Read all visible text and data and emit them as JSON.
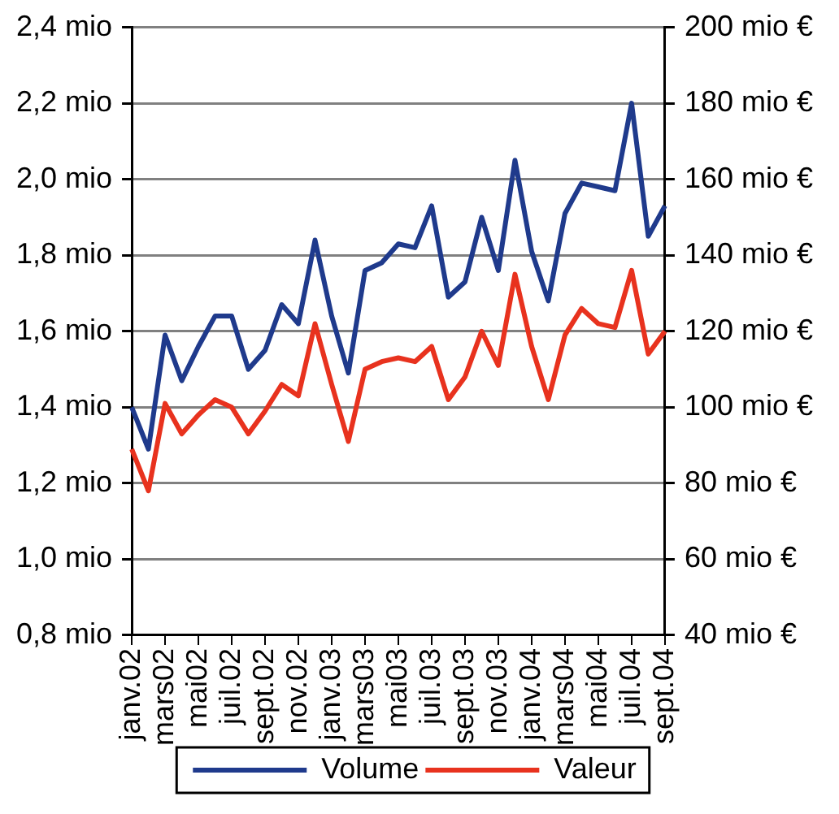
{
  "chart_data": {
    "type": "line",
    "categories": [
      "janv.02",
      null,
      "mars02",
      null,
      "mai02",
      null,
      "juil.02",
      null,
      "sept.02",
      null,
      "nov.02",
      null,
      "janv.03",
      null,
      "mars03",
      null,
      "mai03",
      null,
      "juil.03",
      null,
      "sept.03",
      null,
      "nov.03",
      null,
      "janv.04",
      null,
      "mars04",
      null,
      "mai04",
      null,
      "juil.04",
      null,
      "sept.04"
    ],
    "series": [
      {
        "name": "Volume",
        "color": "#1f3a8c",
        "values": [
          1.4,
          1.29,
          1.59,
          1.47,
          1.56,
          1.64,
          1.64,
          1.5,
          1.55,
          1.67,
          1.62,
          1.84,
          1.64,
          1.49,
          1.76,
          1.78,
          1.83,
          1.82,
          1.93,
          1.69,
          1.73,
          1.9,
          1.76,
          2.05,
          1.81,
          1.68,
          1.91,
          1.99,
          1.98,
          1.97,
          2.2,
          1.85,
          1.93
        ]
      },
      {
        "name": "Valeur",
        "color": "#e8321e",
        "axis": "y2",
        "values": [
          89,
          78,
          101,
          93,
          98,
          102,
          100,
          93,
          99,
          106,
          103,
          122,
          106,
          91,
          110,
          112,
          113,
          112,
          116,
          102,
          108,
          120,
          111,
          135,
          116,
          102,
          119,
          126,
          122,
          121,
          136,
          114,
          120
        ]
      }
    ],
    "ylim": [
      0.8,
      2.4
    ],
    "yticks": [
      {
        "value": 0.8,
        "label": "0,8 mio"
      },
      {
        "value": 1.0,
        "label": "1,0 mio"
      },
      {
        "value": 1.2,
        "label": "1,2 mio"
      },
      {
        "value": 1.4,
        "label": "1,4 mio"
      },
      {
        "value": 1.6,
        "label": "1,6 mio"
      },
      {
        "value": 1.8,
        "label": "1,8 mio"
      },
      {
        "value": 2.0,
        "label": "2,0 mio"
      },
      {
        "value": 2.2,
        "label": "2,2 mio"
      },
      {
        "value": 2.4,
        "label": "2,4 mio"
      }
    ],
    "y2lim": [
      40,
      200
    ],
    "y2ticks": [
      {
        "value": 40,
        "label": "40 mio €"
      },
      {
        "value": 60,
        "label": "60 mio €"
      },
      {
        "value": 80,
        "label": "80 mio €"
      },
      {
        "value": 100,
        "label": "100 mio €"
      },
      {
        "value": 120,
        "label": "120 mio €"
      },
      {
        "value": 140,
        "label": "140 mio €"
      },
      {
        "value": 160,
        "label": "160 mio €"
      },
      {
        "value": 180,
        "label": "180 mio €"
      },
      {
        "value": 200,
        "label": "200 mio €"
      }
    ],
    "grid": "y",
    "legend": "bottom",
    "marker": "none",
    "line_style": "solid"
  }
}
